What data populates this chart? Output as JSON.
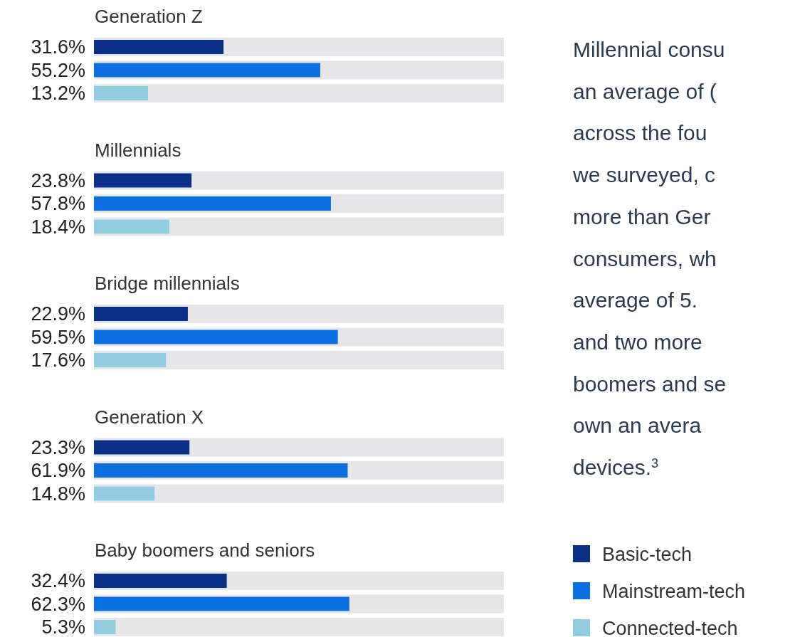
{
  "chart_data": {
    "type": "bar",
    "orientation": "horizontal",
    "categories": [
      "Generation Z",
      "Millennials",
      "Bridge millennials",
      "Generation X",
      "Baby boomers and seniors"
    ],
    "series": [
      {
        "name": "Basic-tech",
        "color": "#0a2f86",
        "values": [
          31.6,
          23.8,
          22.9,
          23.3,
          32.4
        ],
        "value_labels": [
          "31.6%",
          "23.8%",
          "22.9%",
          "23.3%",
          "32.4%"
        ]
      },
      {
        "name": "Mainstream-tech",
        "color": "#0a6fe0",
        "values": [
          55.2,
          57.8,
          59.5,
          61.9,
          62.3
        ],
        "value_labels": [
          "55.2%",
          "57.8%",
          "59.5%",
          "61.9%",
          "62.3%"
        ]
      },
      {
        "name": "Connected-tech",
        "color": "#92cce0",
        "values": [
          13.2,
          18.4,
          17.6,
          14.8,
          5.3
        ],
        "value_labels": [
          "13.2%",
          "18.4%",
          "17.6%",
          "14.8%",
          "5.3%"
        ]
      }
    ],
    "xlim": [
      0,
      100
    ],
    "legend": "right",
    "annotations": [
      "Millennial consu",
      "an average of (",
      "across the fou",
      "we surveyed, c",
      "more than Ger",
      "consumers, wh",
      "average of 5.",
      "and two more",
      "boomers and se",
      "own an avera",
      "devices.$^{3}$"
    ]
  }
}
